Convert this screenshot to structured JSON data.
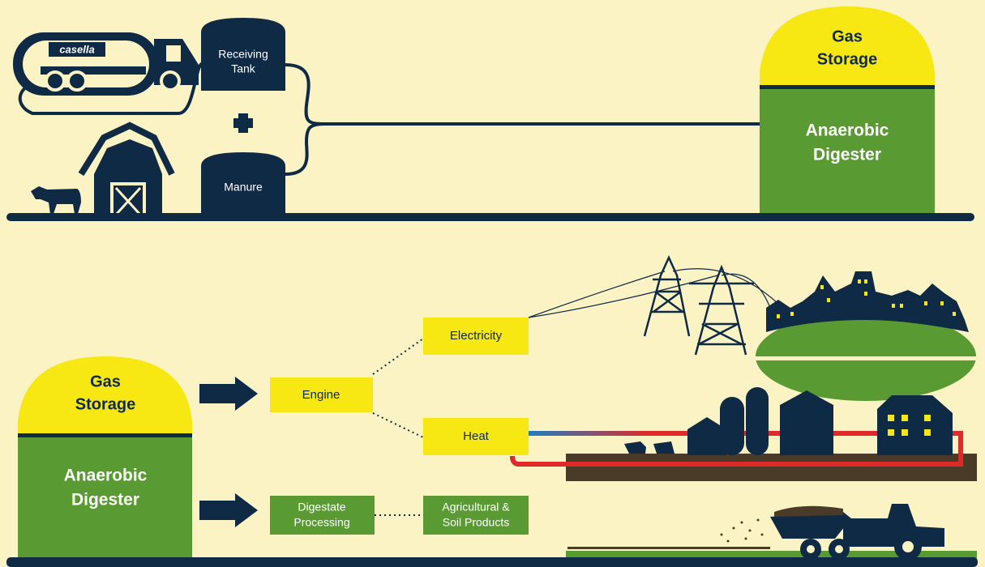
{
  "truck_logo": "casella",
  "top": {
    "receiving_tank": [
      "Receiving",
      "Tank"
    ],
    "manure": "Manure",
    "digester": {
      "gas_storage": [
        "Gas",
        "Storage"
      ],
      "anaerobic_digester": [
        "Anaerobic",
        "Digester"
      ]
    }
  },
  "bottom": {
    "digester": {
      "gas_storage": [
        "Gas",
        "Storage"
      ],
      "anaerobic_digester": [
        "Anaerobic",
        "Digester"
      ]
    },
    "engine": "Engine",
    "electricity": "Electricity",
    "heat": "Heat",
    "digestate_processing": [
      "Digestate",
      "Processing"
    ],
    "agricultural_soil_products": [
      "Agricultural &",
      "Soil Products"
    ]
  }
}
